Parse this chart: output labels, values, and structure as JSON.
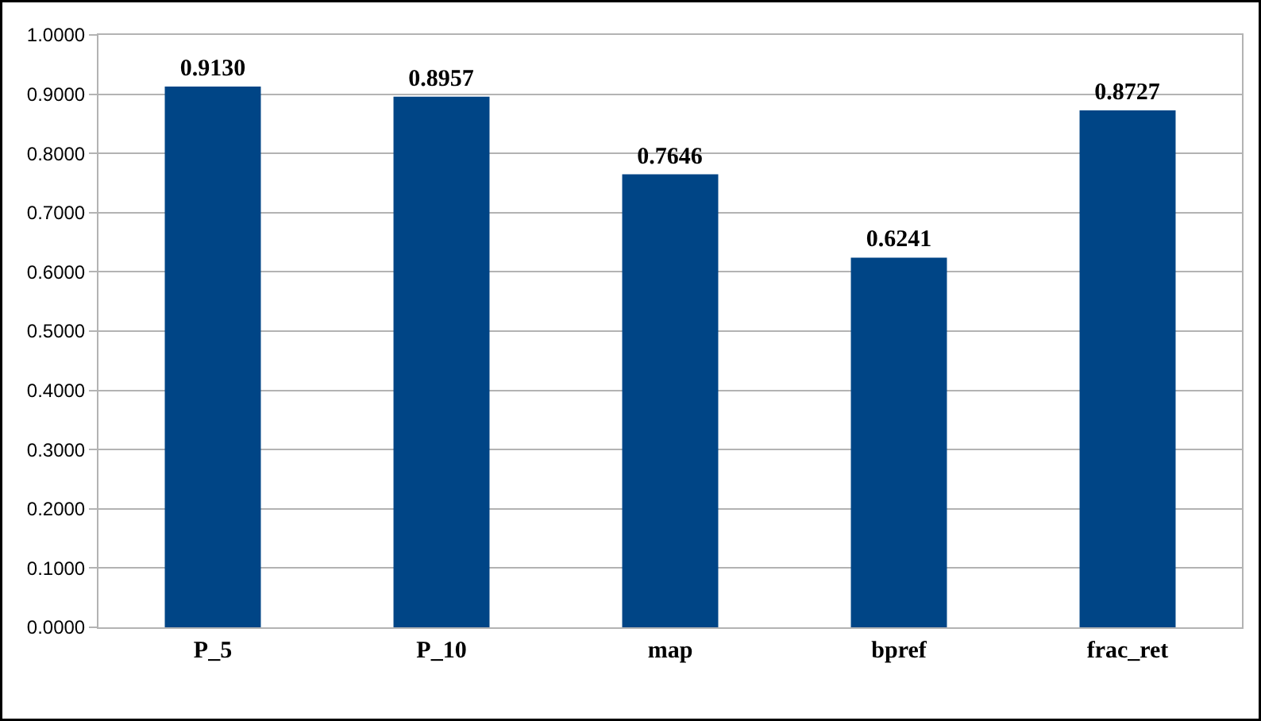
{
  "chart_data": {
    "type": "bar",
    "categories": [
      "P_5",
      "P_10",
      "map",
      "bpref",
      "frac_ret"
    ],
    "values": [
      0.913,
      0.8957,
      0.7646,
      0.6241,
      0.8727
    ],
    "color": "#004586",
    "ylim": [
      0,
      1
    ],
    "yticks": [
      {
        "value": 0,
        "label": "0.0000"
      },
      {
        "value": 0.1,
        "label": "0.1000"
      },
      {
        "value": 0.2,
        "label": "0.2000"
      },
      {
        "value": 0.3,
        "label": "0.3000"
      },
      {
        "value": 0.4,
        "label": "0.4000"
      },
      {
        "value": 0.5,
        "label": "0.5000"
      },
      {
        "value": 0.6,
        "label": "0.6000"
      },
      {
        "value": 0.7,
        "label": "0.7000"
      },
      {
        "value": 0.8,
        "label": "0.8000"
      },
      {
        "value": 0.9,
        "label": "0.9000"
      },
      {
        "value": 1,
        "label": "1.0000"
      }
    ],
    "grid": "y",
    "value_labels": [
      "0.9130",
      "0.8957",
      "0.7646",
      "0.6241",
      "0.8727"
    ],
    "legend": false
  }
}
